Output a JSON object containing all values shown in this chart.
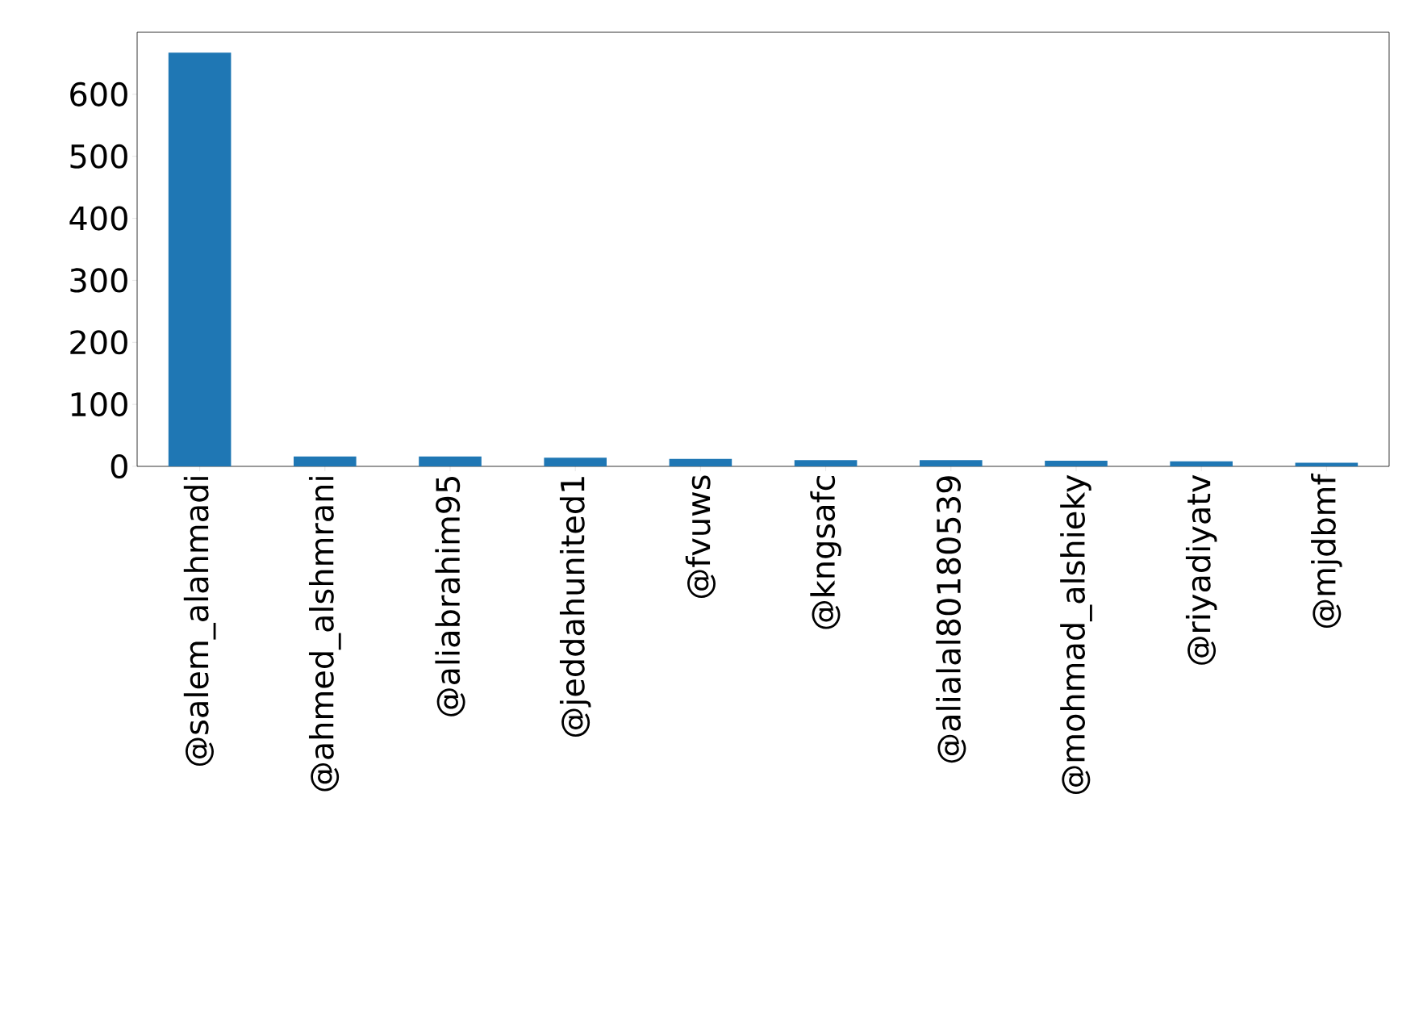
{
  "chart_data": {
    "type": "bar",
    "categories": [
      "@salem_alahmadi",
      "@ahmed_alshmrani",
      "@aliabrahim95",
      "@jeddahunited1",
      "@fvuws",
      "@kngsafc",
      "@alialal80180539",
      "@mohmad_alshieky",
      "@riyadiyatv",
      "@mjdbmf"
    ],
    "values": [
      667,
      16,
      16,
      14,
      12,
      10,
      10,
      9,
      8,
      6
    ],
    "color": "#1f77b4",
    "ylim": [
      0,
      700
    ],
    "yticks": [
      0,
      100,
      200,
      300,
      400,
      500,
      600
    ]
  }
}
